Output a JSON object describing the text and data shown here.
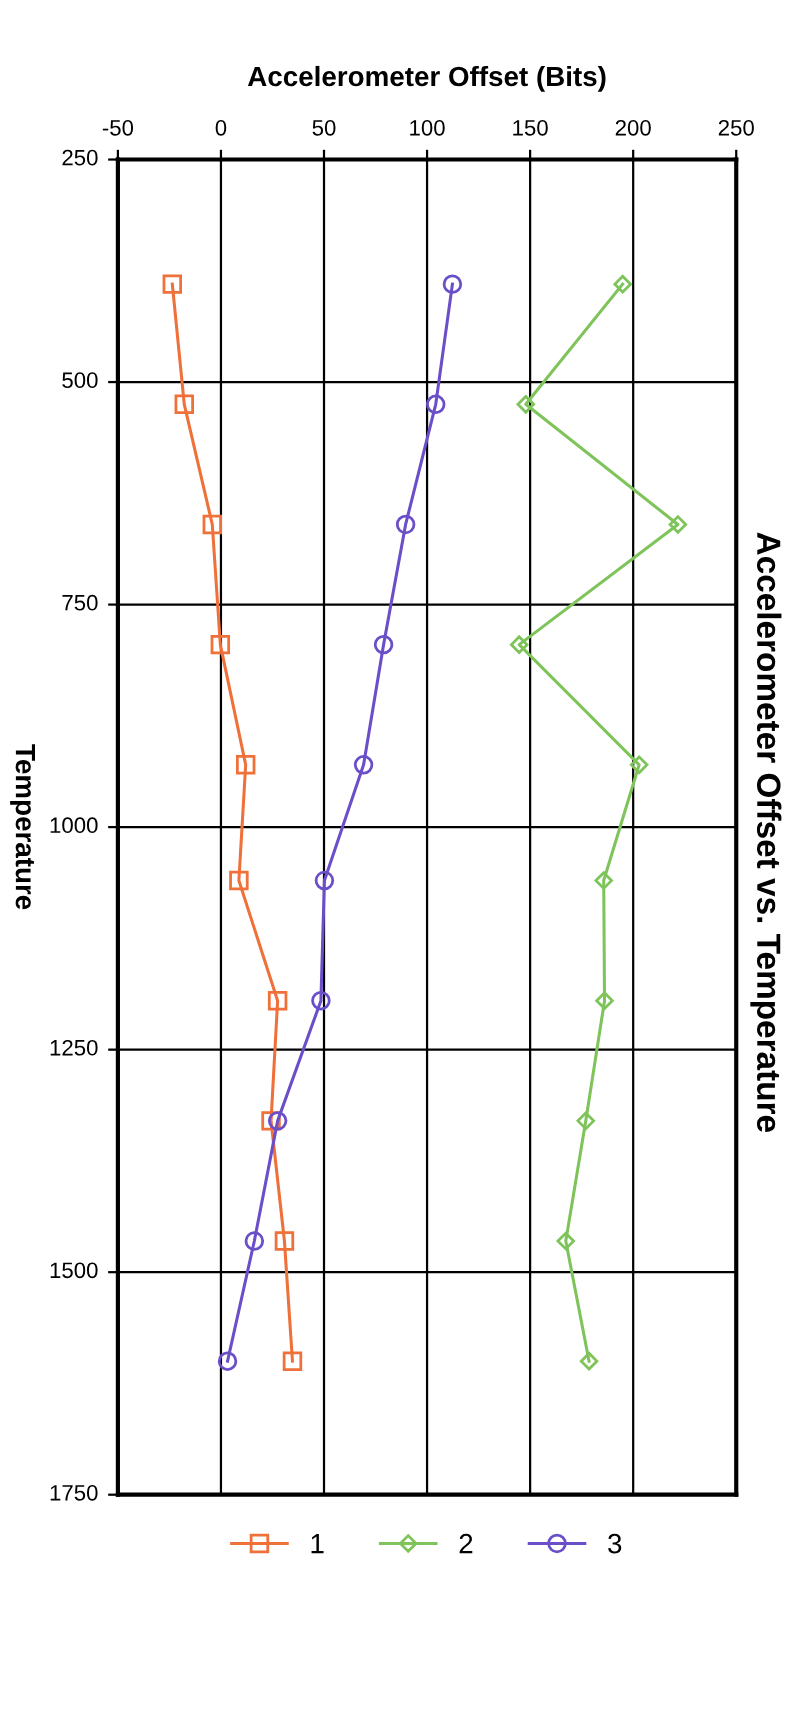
{
  "chart_data": {
    "type": "line",
    "title": "Accelerometer Offset vs. Temperature",
    "xlabel": "Accelerometer Offset (Bits)",
    "ylabel": "Temperature",
    "series": [
      {
        "name": "1",
        "color": "#f0703a",
        "marker": "square",
        "x": [
          -23.6,
          -17.8,
          -4.2,
          -0.3,
          12,
          8.7,
          27.5,
          24.3,
          30.8,
          34.7
        ],
        "values": [
          390,
          525,
          660,
          795,
          930,
          1060,
          1195,
          1330,
          1465,
          1600
        ]
      },
      {
        "name": "2",
        "color": "#7fc45a",
        "marker": "diamond",
        "x": [
          194.9,
          147.9,
          221.7,
          144.7,
          202.9,
          185.7,
          186.1,
          177,
          167.3,
          178.6
        ],
        "values": [
          390,
          525,
          660,
          795,
          930,
          1060,
          1195,
          1330,
          1465,
          1600
        ]
      },
      {
        "name": "3",
        "color": "#6a4fc8",
        "marker": "circle",
        "x": [
          112.3,
          104.2,
          89.6,
          78.9,
          69.2,
          50.2,
          48.5,
          27.5,
          16.2,
          3.2
        ],
        "values": [
          390,
          525,
          660,
          795,
          930,
          1060,
          1195,
          1330,
          1465,
          1600
        ]
      }
    ],
    "xlim": [
      -50,
      250
    ],
    "xticks": [
      -50,
      0,
      50,
      100,
      150,
      200,
      250
    ],
    "ylim": [
      1750,
      250
    ],
    "yticks": [
      250,
      500,
      750,
      1000,
      1250,
      1500,
      1750
    ],
    "grid": true,
    "legend": "bottom",
    "line_style": "solid"
  }
}
